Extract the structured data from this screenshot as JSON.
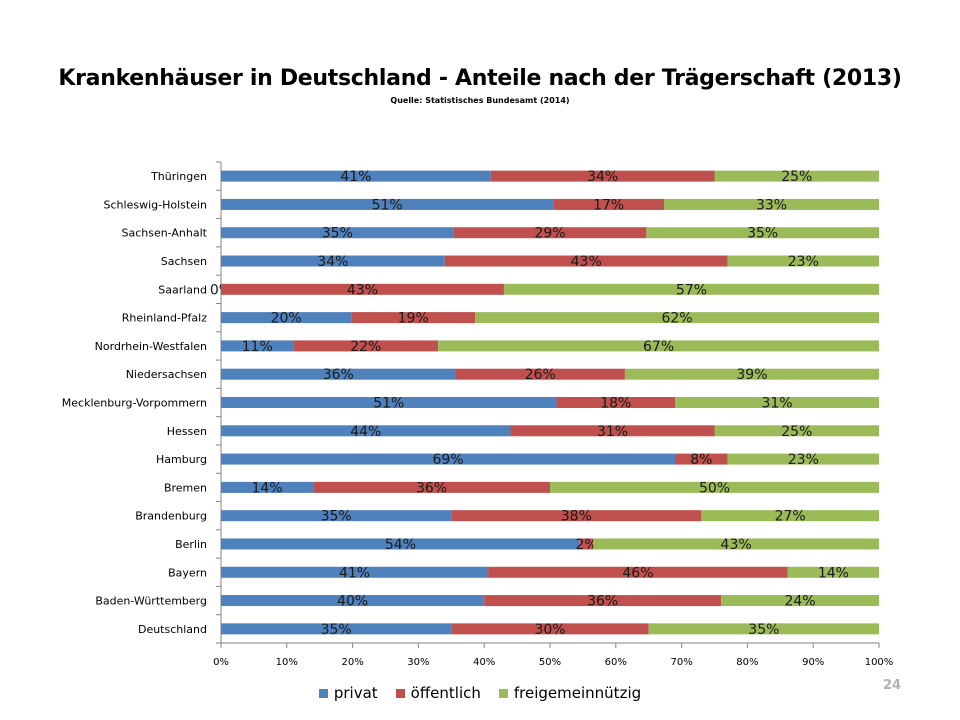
{
  "chart_data": {
    "type": "bar",
    "orientation": "horizontal",
    "stacked": "percent",
    "title": "Krankenhäuser in Deutschland - Anteile nach der Trägerschaft (2013)",
    "subtitle": "Quelle: Statistisches Bundesamt (2014)",
    "categories": [
      "Thüringen",
      "Schleswig-Holstein",
      "Sachsen-Anhalt",
      "Sachsen",
      "Saarland",
      "Rheinland-Pfalz",
      "Nordrhein-Westfalen",
      "Niedersachsen",
      "Mecklenburg-Vorpommern",
      "Hessen",
      "Hamburg",
      "Bremen",
      "Brandenburg",
      "Berlin",
      "Bayern",
      "Baden-Württemberg",
      "Deutschland"
    ],
    "series": [
      {
        "name": "privat",
        "color": "#4f81bd",
        "values": [
          41,
          51,
          35,
          34,
          0,
          20,
          11,
          36,
          51,
          44,
          69,
          14,
          35,
          54,
          41,
          40,
          35
        ]
      },
      {
        "name": "öffentlich",
        "color": "#c0504d",
        "values": [
          34,
          17,
          29,
          43,
          43,
          19,
          22,
          26,
          18,
          31,
          8,
          36,
          38,
          2,
          46,
          36,
          30
        ]
      },
      {
        "name": "freigemeinnützig",
        "color": "#9bbb59",
        "values": [
          25,
          33,
          35,
          23,
          57,
          62,
          67,
          39,
          31,
          25,
          23,
          50,
          27,
          43,
          14,
          24,
          35
        ]
      }
    ],
    "xlim": [
      0,
      100
    ],
    "xticks": [
      "0%",
      "10%",
      "20%",
      "30%",
      "40%",
      "50%",
      "60%",
      "70%",
      "80%",
      "90%",
      "100%"
    ],
    "legend_position": "bottom",
    "grid": false
  },
  "page": {
    "number": "24"
  }
}
